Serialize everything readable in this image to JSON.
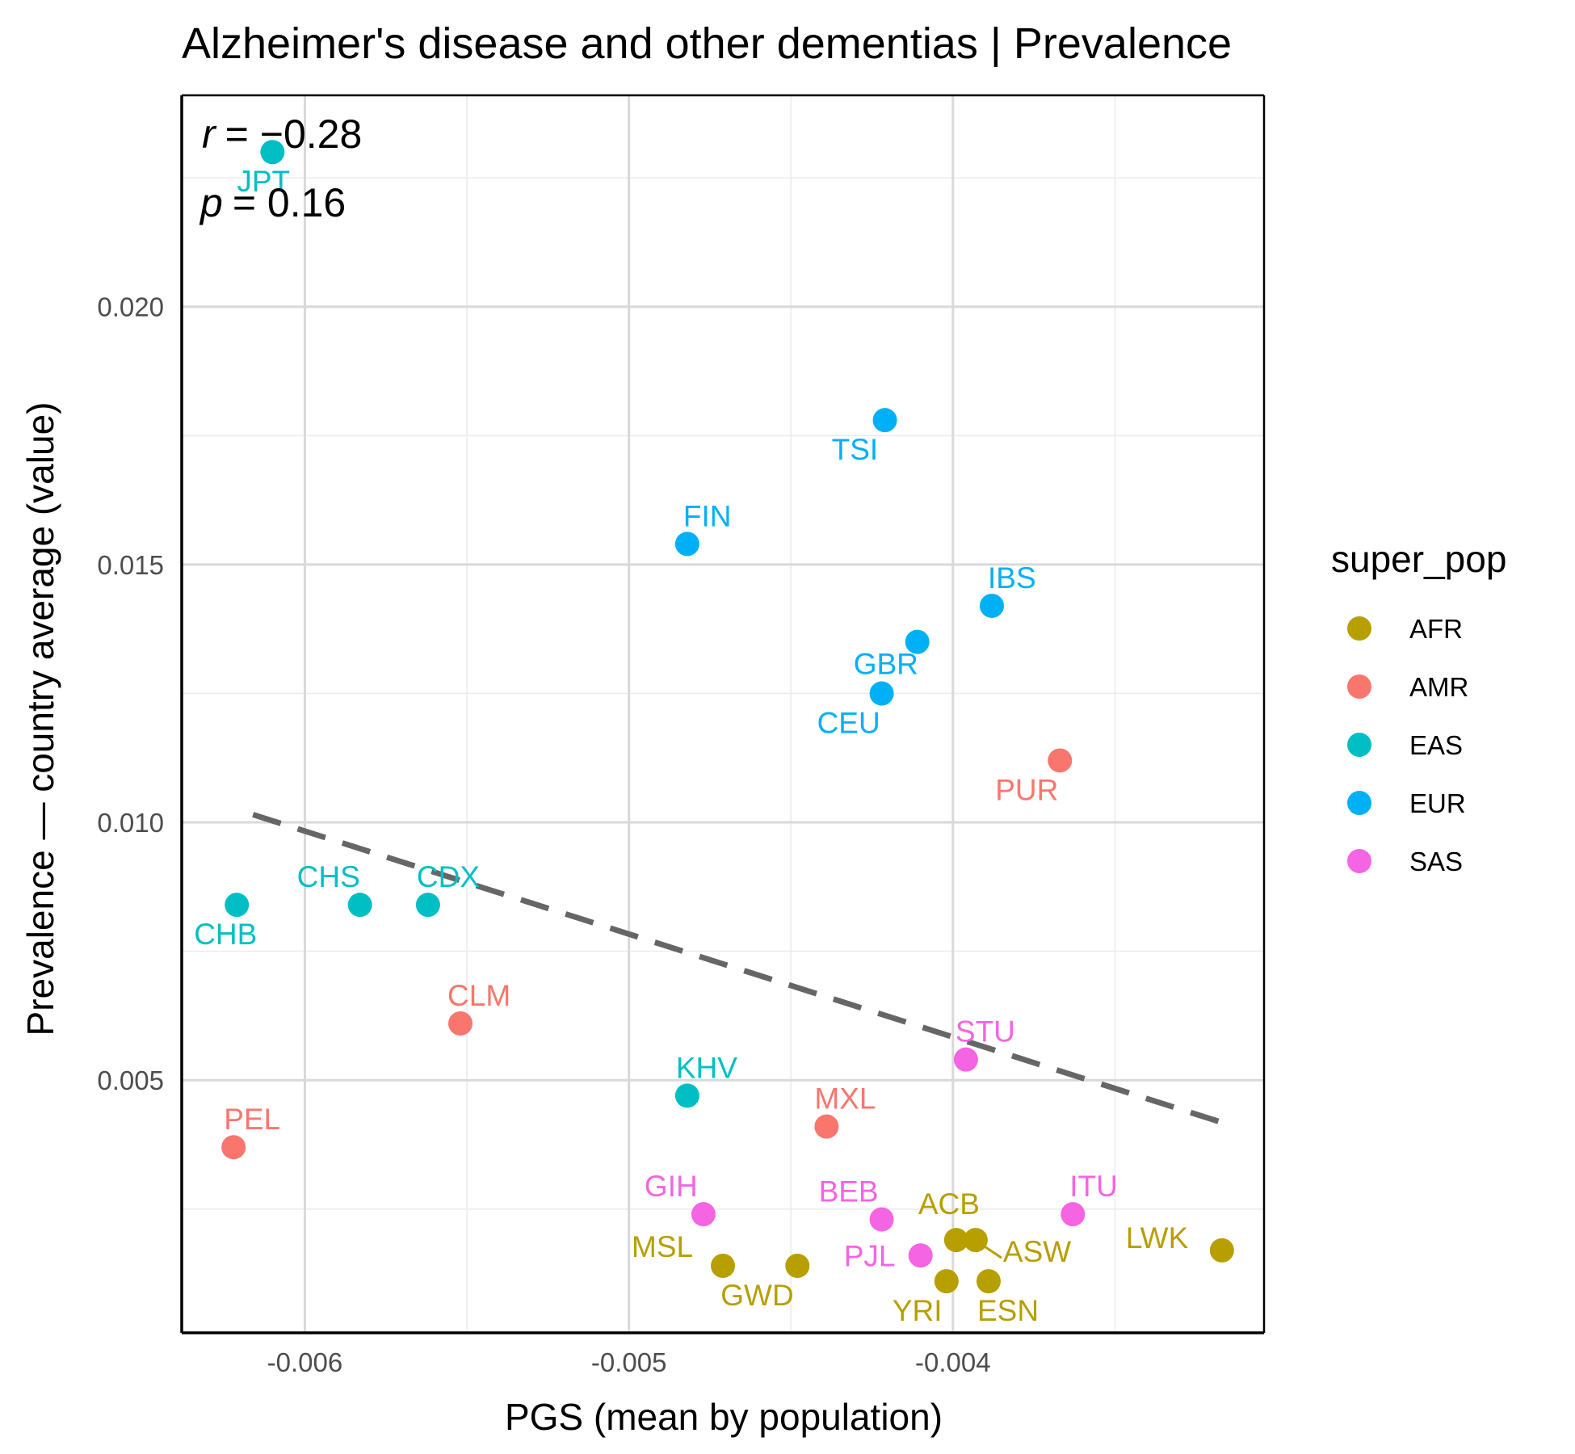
{
  "chart_data": {
    "type": "scatter",
    "title": "Alzheimer's disease and other dementias | Prevalence",
    "xlabel": "PGS (mean by population)",
    "ylabel": "Prevalence — country average (value)",
    "xlim": [
      -0.00638,
      -0.00304
    ],
    "ylim": [
      0.0001,
      0.0241
    ],
    "x_ticks": [
      -0.006,
      -0.005,
      -0.004
    ],
    "x_tick_labels": [
      "-0.006",
      "-0.005",
      "-0.004"
    ],
    "y_ticks": [
      0.005,
      0.01,
      0.015,
      0.02
    ],
    "y_tick_labels": [
      "0.005",
      "0.010",
      "0.015",
      "0.020"
    ],
    "grid": true,
    "legend": {
      "title": "super_pop",
      "position": "right",
      "entries": [
        {
          "name": "AFR",
          "color": "#B79F00"
        },
        {
          "name": "AMR",
          "color": "#F8766D"
        },
        {
          "name": "EAS",
          "color": "#00BFC4"
        },
        {
          "name": "EUR",
          "color": "#00B0F6"
        },
        {
          "name": "SAS",
          "color": "#F564E3"
        }
      ]
    },
    "annotation": {
      "r_symbol": "r",
      "r_value": "= −0.28",
      "p_symbol": "p",
      "p_value": "= 0.16"
    },
    "trend_line": {
      "style": "dashed",
      "color": "#666666",
      "x": [
        -0.00616,
        -0.00318
      ],
      "y": [
        0.01015,
        0.0042
      ]
    },
    "points": [
      {
        "label": "JPT",
        "group": "EAS",
        "x": -0.0061,
        "y": 0.023
      },
      {
        "label": "CHB",
        "group": "EAS",
        "x": -0.00621,
        "y": 0.0084
      },
      {
        "label": "CHS",
        "group": "EAS",
        "x": -0.00583,
        "y": 0.0084
      },
      {
        "label": "CDX",
        "group": "EAS",
        "x": -0.00562,
        "y": 0.0084
      },
      {
        "label": "KHV",
        "group": "EAS",
        "x": -0.00482,
        "y": 0.0047
      },
      {
        "label": "TSI",
        "group": "EUR",
        "x": -0.00421,
        "y": 0.0178
      },
      {
        "label": "FIN",
        "group": "EUR",
        "x": -0.00482,
        "y": 0.0154
      },
      {
        "label": "IBS",
        "group": "EUR",
        "x": -0.00388,
        "y": 0.0142
      },
      {
        "label": "GBR",
        "group": "EUR",
        "x": -0.00411,
        "y": 0.0135
      },
      {
        "label": "CEU",
        "group": "EUR",
        "x": -0.00422,
        "y": 0.0125
      },
      {
        "label": "PUR",
        "group": "AMR",
        "x": -0.00367,
        "y": 0.0112
      },
      {
        "label": "CLM",
        "group": "AMR",
        "x": -0.00552,
        "y": 0.0061
      },
      {
        "label": "PEL",
        "group": "AMR",
        "x": -0.00622,
        "y": 0.0037
      },
      {
        "label": "MXL",
        "group": "AMR",
        "x": -0.00439,
        "y": 0.0041
      },
      {
        "label": "STU",
        "group": "SAS",
        "x": -0.00396,
        "y": 0.0054
      },
      {
        "label": "GIH",
        "group": "SAS",
        "x": -0.00477,
        "y": 0.0024
      },
      {
        "label": "BEB",
        "group": "SAS",
        "x": -0.00422,
        "y": 0.0023
      },
      {
        "label": "PJL",
        "group": "SAS",
        "x": -0.0041,
        "y": 0.0016
      },
      {
        "label": "ITU",
        "group": "SAS",
        "x": -0.00363,
        "y": 0.0024
      },
      {
        "label": "MSL",
        "group": "AFR",
        "x": -0.00471,
        "y": 0.0014
      },
      {
        "label": "GWD",
        "group": "AFR",
        "x": -0.00448,
        "y": 0.0014
      },
      {
        "label": "ACB",
        "group": "AFR",
        "x": -0.00399,
        "y": 0.0019
      },
      {
        "label": "ASW",
        "group": "AFR",
        "x": -0.00393,
        "y": 0.0019
      },
      {
        "label": "YRI",
        "group": "AFR",
        "x": -0.00402,
        "y": 0.0011
      },
      {
        "label": "ESN",
        "group": "AFR",
        "x": -0.00389,
        "y": 0.0011
      },
      {
        "label": "LWK",
        "group": "AFR",
        "x": -0.00317,
        "y": 0.0017
      }
    ]
  }
}
